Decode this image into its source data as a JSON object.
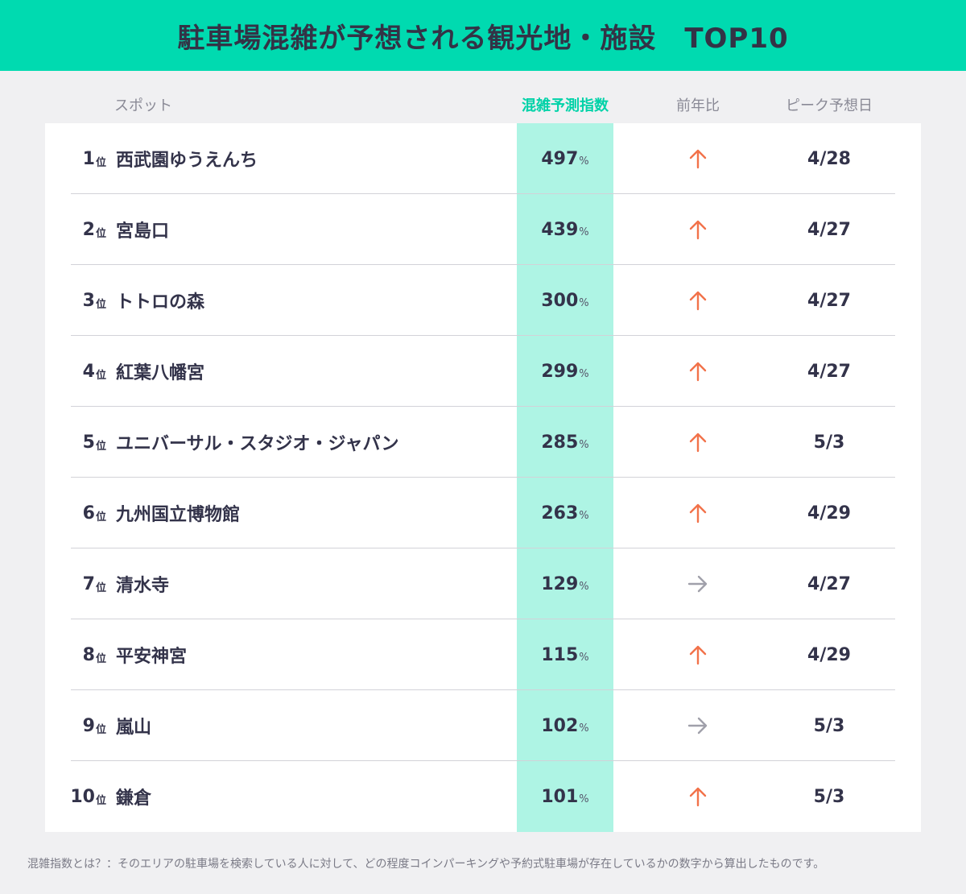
{
  "title": "駐車場混雑が予想される観光地・施設　TOP10",
  "headers": {
    "spot": "スポット",
    "index": "混雑予測指数",
    "yoy": "前年比",
    "peak": "ピーク予想日"
  },
  "rank_suffix": "位",
  "index_unit": "%",
  "colors": {
    "title_bar": "#00dab0",
    "index_band": "#aef4e4",
    "arrow_up": "#f2724a",
    "arrow_flat": "#a0a0aa"
  },
  "chart_data": {
    "type": "table",
    "columns": [
      "スポット",
      "混雑予測指数",
      "前年比",
      "ピーク予想日"
    ],
    "rows": [
      {
        "rank": "1",
        "spot": "西武園ゆうえんち",
        "index": "497",
        "yoy": "up",
        "peak": "4/28"
      },
      {
        "rank": "2",
        "spot": "宮島口",
        "index": "439",
        "yoy": "up",
        "peak": "4/27"
      },
      {
        "rank": "3",
        "spot": "トトロの森",
        "index": "300",
        "yoy": "up",
        "peak": "4/27"
      },
      {
        "rank": "4",
        "spot": "紅葉八幡宮",
        "index": "299",
        "yoy": "up",
        "peak": "4/27"
      },
      {
        "rank": "5",
        "spot": "ユニバーサル・スタジオ・ジャパン",
        "index": "285",
        "yoy": "up",
        "peak": "5/3"
      },
      {
        "rank": "6",
        "spot": "九州国立博物館",
        "index": "263",
        "yoy": "up",
        "peak": "4/29"
      },
      {
        "rank": "7",
        "spot": "清水寺",
        "index": "129",
        "yoy": "flat",
        "peak": "4/27"
      },
      {
        "rank": "8",
        "spot": "平安神宮",
        "index": "115",
        "yoy": "up",
        "peak": "4/29"
      },
      {
        "rank": "9",
        "spot": "嵐山",
        "index": "102",
        "yoy": "flat",
        "peak": "5/3"
      },
      {
        "rank": "10",
        "spot": "鎌倉",
        "index": "101",
        "yoy": "up",
        "peak": "5/3"
      }
    ]
  },
  "footnote": "混雑指数とは？：そのエリアの駐車場を検索している人に対して、どの程度コインパーキングや予約式駐車場が存在しているかの数字から算出したものです。"
}
